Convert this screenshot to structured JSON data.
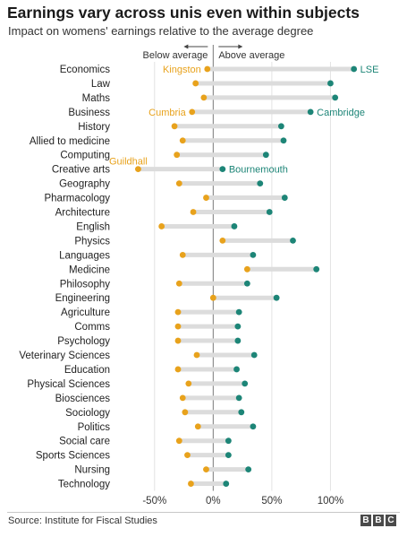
{
  "title": "Earnings vary across unis even within subjects",
  "subtitle": "Impact on womens' earnings relative to the average degree",
  "source": "Source: Institute for Fiscal Studies",
  "logo_letters": [
    "B",
    "B",
    "C"
  ],
  "colors": {
    "below": "#e8a21c",
    "above": "#1d8577",
    "bar": "#dcdcdc",
    "grid": "#e2e2e2",
    "zero": "#7a7a7a"
  },
  "chart_data": {
    "type": "dot",
    "xlim": [
      -75,
      150
    ],
    "x_ticks": [
      -50,
      0,
      50,
      100
    ],
    "x_tick_labels": [
      "-50%",
      "0%",
      "50%",
      "100%"
    ],
    "direction_labels": {
      "below": "Below average",
      "above": "Above average"
    },
    "grid": true,
    "subjects": [
      {
        "name": "Economics",
        "min": -5,
        "max": 120,
        "min_label": "Kingston",
        "max_label": "LSE"
      },
      {
        "name": "Law",
        "min": -15,
        "max": 100
      },
      {
        "name": "Maths",
        "min": -8,
        "max": 104
      },
      {
        "name": "Business",
        "min": -18,
        "max": 83,
        "min_label": "Cumbria",
        "max_label": "Cambridge"
      },
      {
        "name": "History",
        "min": -33,
        "max": 58
      },
      {
        "name": "Allied to medicine",
        "min": -26,
        "max": 60
      },
      {
        "name": "Computing",
        "min": -31,
        "max": 45,
        "min_label": "Guildhall"
      },
      {
        "name": "Creative arts",
        "min": -64,
        "max": 8,
        "max_label": "Bournemouth"
      },
      {
        "name": "Geography",
        "min": -29,
        "max": 40
      },
      {
        "name": "Pharmacology",
        "min": -6,
        "max": 61
      },
      {
        "name": "Architecture",
        "min": -17,
        "max": 48
      },
      {
        "name": "English",
        "min": -44,
        "max": 18
      },
      {
        "name": "Physics",
        "min": 8,
        "max": 68
      },
      {
        "name": "Languages",
        "min": -26,
        "max": 34
      },
      {
        "name": "Medicine",
        "min": 29,
        "max": 88
      },
      {
        "name": "Philosophy",
        "min": -29,
        "max": 29
      },
      {
        "name": "Engineering",
        "min": 0,
        "max": 54
      },
      {
        "name": "Agriculture",
        "min": -30,
        "max": 22
      },
      {
        "name": "Comms",
        "min": -30,
        "max": 21
      },
      {
        "name": "Psychology",
        "min": -30,
        "max": 21
      },
      {
        "name": "Veterinary Sciences",
        "min": -14,
        "max": 35
      },
      {
        "name": "Education",
        "min": -30,
        "max": 20
      },
      {
        "name": "Physical Sciences",
        "min": -21,
        "max": 27
      },
      {
        "name": "Biosciences",
        "min": -26,
        "max": 22
      },
      {
        "name": "Sociology",
        "min": -24,
        "max": 24
      },
      {
        "name": "Politics",
        "min": -13,
        "max": 34
      },
      {
        "name": "Social care",
        "min": -29,
        "max": 13
      },
      {
        "name": "Sports Sciences",
        "min": -22,
        "max": 13
      },
      {
        "name": "Nursing",
        "min": -6,
        "max": 30
      },
      {
        "name": "Technology",
        "min": -19,
        "max": 11
      }
    ]
  }
}
